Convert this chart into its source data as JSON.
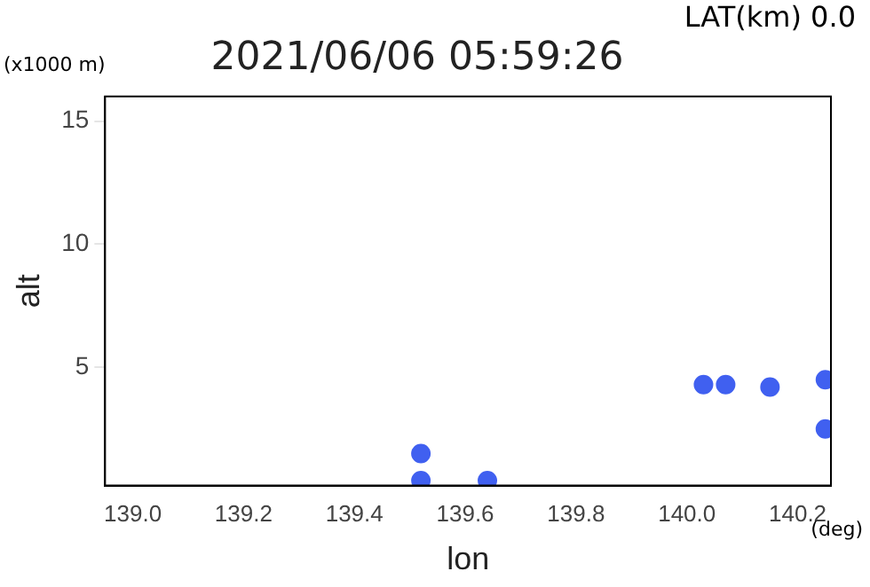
{
  "chart_data": {
    "type": "scatter",
    "title": "2021/06/06 05:59:26",
    "xlabel": "lon",
    "ylabel": "alt",
    "annotations": [
      "LAT(km) 0.0",
      "(x1000 m)",
      "(deg)"
    ],
    "x": [
      139.52,
      139.52,
      139.64,
      140.03,
      140.07,
      140.15,
      140.25,
      140.25
    ],
    "series": [
      {
        "color": "#4060f0",
        "values": [
          1.5,
          0.4,
          0.4,
          4.3,
          4.3,
          4.2,
          2.5,
          4.5
        ]
      }
    ],
    "marker": "circle",
    "grid": false,
    "legend": false,
    "xlim": [
      138.95,
      140.26
    ],
    "ylim": [
      0.2,
      16
    ],
    "xticks": [
      {
        "value": 139.0,
        "label": "139.0"
      },
      {
        "value": 139.2,
        "label": "139.2"
      },
      {
        "value": 139.4,
        "label": "139.4"
      },
      {
        "value": 139.6,
        "label": "139.6"
      },
      {
        "value": 139.8,
        "label": "139.8"
      },
      {
        "value": 140.0,
        "label": "140.0"
      },
      {
        "value": 140.2,
        "label": "140.2"
      }
    ],
    "yticks": [
      5,
      10,
      15
    ]
  }
}
